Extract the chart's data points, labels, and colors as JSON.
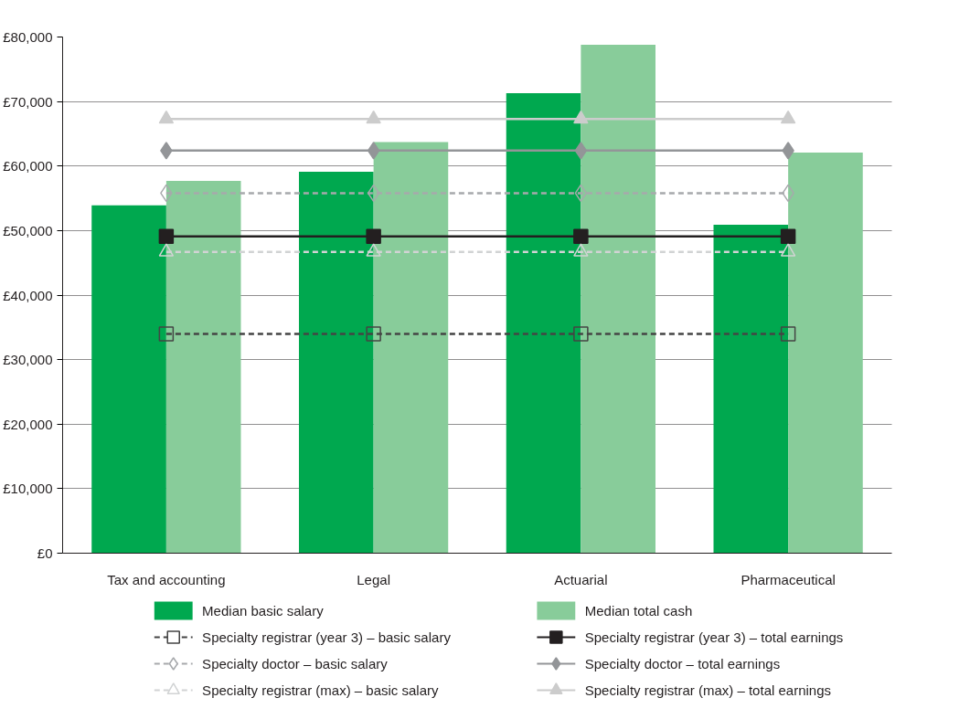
{
  "chart_data": {
    "type": "bar",
    "categories": [
      "Tax and accounting",
      "Legal",
      "Actuarial",
      "Pharmaceutical"
    ],
    "series": [
      {
        "name": "Median basic salary",
        "color": "#00a84f",
        "values": [
          53900,
          59100,
          71300,
          50900
        ]
      },
      {
        "name": "Median total cash",
        "color": "#88cc9a",
        "values": [
          57700,
          63700,
          78800,
          62100
        ]
      },
      {
        "name": "Specialty registrar (year 3) – basic salary",
        "type": "line",
        "color": "#444444",
        "marker": "square",
        "line_style": "dashed",
        "values": [
          34000,
          34000,
          34000,
          34000
        ]
      },
      {
        "name": "Specialty registrar (year 3) – total earnings",
        "type": "line",
        "color": "#231f20",
        "marker": "square",
        "line_style": "solid",
        "values": [
          49100,
          49100,
          49100,
          49100
        ]
      },
      {
        "name": "Specialty doctor – basic salary",
        "type": "line",
        "color": "#a7a9ac",
        "marker": "diamond",
        "line_style": "dashed",
        "values": [
          55800,
          55800,
          55800,
          55800
        ]
      },
      {
        "name": "Specialty doctor – total earnings",
        "type": "line",
        "color": "#939598",
        "marker": "diamond",
        "line_style": "solid",
        "values": [
          62400,
          62400,
          62400,
          62400
        ]
      },
      {
        "name": "Specialty registrar (max) – basic salary",
        "type": "line",
        "color": "#d1d3d4",
        "marker": "triangle",
        "line_style": "dashed",
        "values": [
          46700,
          46700,
          46700,
          46700
        ]
      },
      {
        "name": "Specialty registrar (max) – total earnings",
        "type": "line",
        "color": "#cccccc",
        "marker": "triangle",
        "line_style": "solid",
        "values": [
          67300,
          67300,
          67300,
          67300
        ]
      }
    ],
    "ylim": [
      0,
      80000
    ],
    "yticks": [
      {
        "value": 0,
        "label": "£0"
      },
      {
        "value": 10000,
        "label": "£10,000"
      },
      {
        "value": 20000,
        "label": "£20,000"
      },
      {
        "value": 30000,
        "label": "£30,000"
      },
      {
        "value": 40000,
        "label": "£40,000"
      },
      {
        "value": 50000,
        "label": "£50,000"
      },
      {
        "value": 60000,
        "label": "£60,000"
      },
      {
        "value": 70000,
        "label": "£70,000"
      },
      {
        "value": 80000,
        "label": "£80,000"
      }
    ],
    "grid": "y",
    "legend": "bottom"
  }
}
